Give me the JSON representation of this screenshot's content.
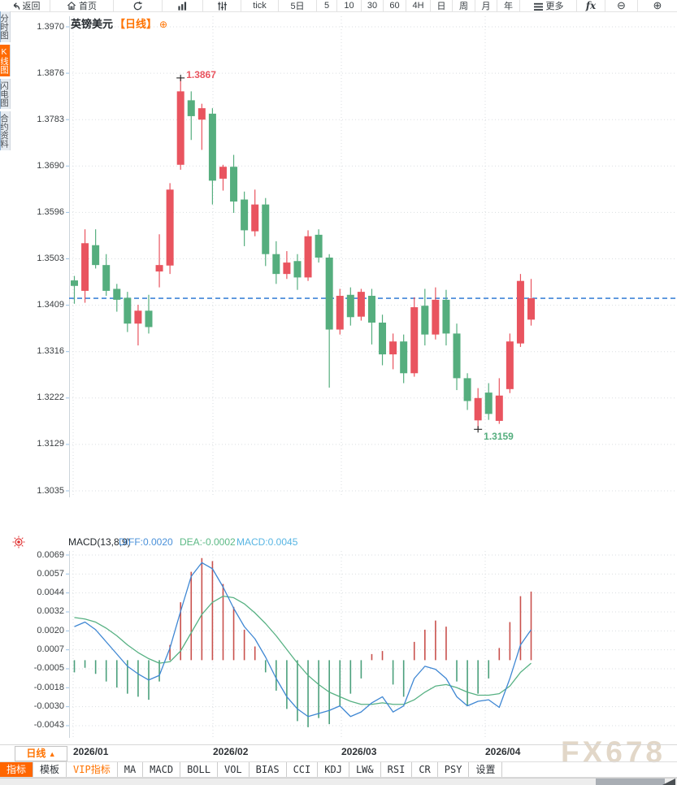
{
  "toolbar": {
    "items": [
      {
        "id": "back",
        "label": "返回",
        "icon": "back-arrow"
      },
      {
        "id": "home",
        "label": "首页",
        "icon": "home"
      },
      {
        "id": "refresh",
        "label": "",
        "icon": "refresh"
      },
      {
        "id": "chart-type",
        "label": "",
        "icon": "chart-bars"
      },
      {
        "id": "indicator-settings",
        "label": "",
        "icon": "sliders"
      },
      {
        "id": "tick",
        "label": "tick",
        "icon": ""
      },
      {
        "id": "5d",
        "label": "5日",
        "icon": ""
      },
      {
        "id": "5m",
        "label": "5",
        "icon": ""
      },
      {
        "id": "10m",
        "label": "10",
        "icon": ""
      },
      {
        "id": "30m",
        "label": "30",
        "icon": ""
      },
      {
        "id": "60m",
        "label": "60",
        "icon": ""
      },
      {
        "id": "4h",
        "label": "4H",
        "icon": ""
      },
      {
        "id": "day",
        "label": "日",
        "icon": ""
      },
      {
        "id": "week",
        "label": "周",
        "icon": ""
      },
      {
        "id": "month",
        "label": "月",
        "icon": ""
      },
      {
        "id": "year",
        "label": "年",
        "icon": ""
      },
      {
        "id": "more",
        "label": "更多",
        "icon": "menu"
      },
      {
        "id": "fx-tools",
        "label": "fx",
        "icon": ""
      },
      {
        "id": "zoom-out",
        "label": "⊖",
        "icon": ""
      },
      {
        "id": "zoom-in",
        "label": "⊕",
        "icon": ""
      }
    ]
  },
  "sidebar": {
    "items": [
      {
        "id": "fenshi",
        "label": "分时图",
        "active": false
      },
      {
        "id": "kline",
        "label": "K线图",
        "active": true
      },
      {
        "id": "shandian",
        "label": "闪电图",
        "active": false
      },
      {
        "id": "heyue",
        "label": "合约资料",
        "active": false
      }
    ]
  },
  "chart_data": {
    "type": "candlestick+macd",
    "symbol": "英镑美元",
    "period_tag": "【日线】",
    "period": "日线",
    "high_label": "1.3867",
    "low_label": "1.3159",
    "current_price_line": 1.3423,
    "y_axis_labels": [
      "1.3970",
      "1.3876",
      "1.3783",
      "1.3690",
      "1.3596",
      "1.3503",
      "1.3409",
      "1.3316",
      "1.3222",
      "1.3129",
      "1.3035"
    ],
    "x_axis_labels": [
      "2026/01",
      "2026/02",
      "2026/03",
      "2026/04"
    ],
    "candles": [
      [
        1.3459,
        1.3468,
        1.3412,
        1.3448
      ],
      [
        1.3438,
        1.3562,
        1.3414,
        1.3534
      ],
      [
        1.353,
        1.3562,
        1.3483,
        1.349
      ],
      [
        1.349,
        1.3512,
        1.3428,
        1.3438
      ],
      [
        1.3442,
        1.3452,
        1.3396,
        1.342
      ],
      [
        1.3424,
        1.3436,
        1.3355,
        1.3372
      ],
      [
        1.3372,
        1.341,
        1.3328,
        1.3398
      ],
      [
        1.3398,
        1.343,
        1.3352,
        1.3365
      ],
      [
        1.3477,
        1.3552,
        1.3445,
        1.349
      ],
      [
        1.3489,
        1.3655,
        1.3472,
        1.3642
      ],
      [
        1.3692,
        1.3867,
        1.3682,
        1.384
      ],
      [
        1.3822,
        1.384,
        1.3742,
        1.379
      ],
      [
        1.3783,
        1.3815,
        1.3722,
        1.3806
      ],
      [
        1.3795,
        1.3806,
        1.3612,
        1.366
      ],
      [
        1.3664,
        1.3692,
        1.364,
        1.3688
      ],
      [
        1.3688,
        1.3712,
        1.3595,
        1.3618
      ],
      [
        1.3622,
        1.3638,
        1.3528,
        1.356
      ],
      [
        1.3558,
        1.3642,
        1.3548,
        1.3612
      ],
      [
        1.3612,
        1.3625,
        1.3488,
        1.3512
      ],
      [
        1.3512,
        1.3538,
        1.3452,
        1.3472
      ],
      [
        1.3472,
        1.3518,
        1.3462,
        1.3495
      ],
      [
        1.3498,
        1.3512,
        1.344,
        1.3465
      ],
      [
        1.3465,
        1.356,
        1.3458,
        1.3548
      ],
      [
        1.3551,
        1.3562,
        1.3495,
        1.3505
      ],
      [
        1.3505,
        1.3512,
        1.3243,
        1.336
      ],
      [
        1.336,
        1.3442,
        1.335,
        1.3428
      ],
      [
        1.343,
        1.3445,
        1.3368,
        1.3385
      ],
      [
        1.3386,
        1.3442,
        1.3378,
        1.3436
      ],
      [
        1.3428,
        1.3442,
        1.333,
        1.3374
      ],
      [
        1.3374,
        1.339,
        1.3288,
        1.331
      ],
      [
        1.331,
        1.3352,
        1.328,
        1.3336
      ],
      [
        1.3336,
        1.335,
        1.3252,
        1.3272
      ],
      [
        1.3272,
        1.3425,
        1.3265,
        1.3405
      ],
      [
        1.3408,
        1.3442,
        1.3328,
        1.335
      ],
      [
        1.335,
        1.3445,
        1.334,
        1.342
      ],
      [
        1.342,
        1.344,
        1.3328,
        1.3352
      ],
      [
        1.3352,
        1.3372,
        1.3238,
        1.3262
      ],
      [
        1.3262,
        1.3272,
        1.3198,
        1.3216
      ],
      [
        1.3177,
        1.3242,
        1.3159,
        1.3222
      ],
      [
        1.3233,
        1.3252,
        1.3178,
        1.319
      ],
      [
        1.3176,
        1.3262,
        1.317,
        1.3227
      ],
      [
        1.324,
        1.3352,
        1.3232,
        1.3336
      ],
      [
        1.3332,
        1.3472,
        1.3325,
        1.3458
      ],
      [
        1.338,
        1.3462,
        1.3368,
        1.3423
      ]
    ],
    "macd": {
      "y_axis_labels": [
        "0.0069",
        "0.0057",
        "0.0044",
        "0.0032",
        "0.0020",
        "0.0007",
        "-0.0005",
        "-0.0018",
        "-0.0030",
        "-0.0043"
      ],
      "histogram": [
        -0.0008,
        -0.0005,
        -0.0009,
        -0.0014,
        -0.0018,
        -0.0022,
        -0.0024,
        -0.0026,
        -0.0014,
        0.001,
        0.0038,
        0.0058,
        0.0067,
        0.0065,
        0.005,
        0.0035,
        0.002,
        0.0009,
        -0.0008,
        -0.002,
        -0.0032,
        -0.004,
        -0.0044,
        -0.0038,
        -0.0042,
        -0.003,
        -0.0022,
        -0.0012,
        0.0004,
        0.0006,
        -0.0016,
        -0.0024,
        0.0012,
        0.002,
        0.0026,
        0.0022,
        -0.0014,
        -0.003,
        -0.0022,
        -0.0012,
        0.0008,
        0.0025,
        0.0042,
        0.0045
      ],
      "diff_line": [
        0.0022,
        0.0025,
        0.002,
        0.0012,
        0.0004,
        -0.0004,
        -0.0009,
        -0.0013,
        -0.001,
        0.0008,
        0.0032,
        0.0055,
        0.0064,
        0.006,
        0.0048,
        0.0034,
        0.0022,
        0.0014,
        0.0002,
        -0.0012,
        -0.0024,
        -0.0032,
        -0.0037,
        -0.0035,
        -0.0033,
        -0.003,
        -0.0037,
        -0.0034,
        -0.0028,
        -0.0024,
        -0.0034,
        -0.003,
        -0.0012,
        -0.0004,
        -0.0006,
        -0.0012,
        -0.0024,
        -0.003,
        -0.0027,
        -0.0026,
        -0.0031,
        -0.0012,
        0.001,
        0.002
      ],
      "dea_line": [
        0.0028,
        0.0027,
        0.0025,
        0.0021,
        0.0016,
        0.001,
        0.0005,
        0.0001,
        -0.0002,
        -0.0001,
        0.0006,
        0.0018,
        0.003,
        0.0038,
        0.0042,
        0.0041,
        0.0037,
        0.0031,
        0.0024,
        0.0016,
        0.0007,
        -0.0002,
        -0.001,
        -0.0016,
        -0.0021,
        -0.0024,
        -0.0027,
        -0.0029,
        -0.0029,
        -0.0028,
        -0.0029,
        -0.0029,
        -0.0026,
        -0.0021,
        -0.0017,
        -0.0016,
        -0.0018,
        -0.0021,
        -0.0023,
        -0.0023,
        -0.0022,
        -0.0017,
        -0.0008,
        -0.0002
      ]
    }
  },
  "macd_header": {
    "title": "MACD(13,8,9)",
    "diff_label": "DIFF:0.0020",
    "dea_label": "DEA:-0.0002",
    "macd_label": "MACD:0.0045"
  },
  "period_selector": {
    "label": "日线",
    "arrow": "▲"
  },
  "tabs": [
    {
      "id": "zhibiao",
      "label": "指标",
      "state": "active"
    },
    {
      "id": "moban",
      "label": "模板",
      "state": ""
    },
    {
      "id": "vip",
      "label": "VIP指标",
      "state": "accent"
    },
    {
      "id": "ma",
      "label": "MA",
      "state": ""
    },
    {
      "id": "macd",
      "label": "MACD",
      "state": ""
    },
    {
      "id": "boll",
      "label": "BOLL",
      "state": ""
    },
    {
      "id": "vol",
      "label": "VOL",
      "state": ""
    },
    {
      "id": "bias",
      "label": "BIAS",
      "state": ""
    },
    {
      "id": "cci",
      "label": "CCI",
      "state": ""
    },
    {
      "id": "kdj",
      "label": "KDJ",
      "state": ""
    },
    {
      "id": "lw",
      "label": "LW&",
      "state": ""
    },
    {
      "id": "rsi",
      "label": "RSI",
      "state": ""
    },
    {
      "id": "cr",
      "label": "CR",
      "state": ""
    },
    {
      "id": "psy",
      "label": "PSY",
      "state": ""
    },
    {
      "id": "shezhi",
      "label": "设置",
      "state": ""
    }
  ],
  "watermark": "FX678",
  "colors": {
    "up": "#e9545f",
    "down": "#55ae7e",
    "hist_up": "#c9514d",
    "hist_down": "#4ba07c",
    "diff_line": "#3f87d3",
    "dea_line": "#57b183",
    "macd_value": "#57b5e3",
    "diff_value": "#4a90d9",
    "dea_value": "#5cb985",
    "accent_orange": "#ff6600",
    "price_line": "#1e6fd0",
    "grid": "#dadee1",
    "watermark": "#e2d7c8"
  }
}
